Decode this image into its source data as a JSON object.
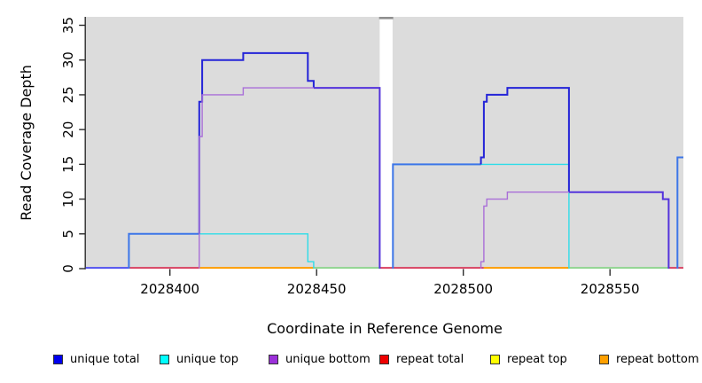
{
  "figure_title": "",
  "axes": {
    "x_title": "Coordinate in Reference Genome",
    "y_title": "Read Coverage Depth"
  },
  "legend": {
    "items": [
      {
        "label": "unique total",
        "color": "#0000EE"
      },
      {
        "label": "unique top",
        "color": "#00FFFF"
      },
      {
        "label": "unique bottom",
        "color": "#9B30D9"
      },
      {
        "label": "repeat total",
        "color": "#EE0000"
      },
      {
        "label": "repeat top",
        "color": "#FFFF00"
      },
      {
        "label": "repeat bottom",
        "color": "#FFA000"
      }
    ]
  },
  "chart_data": {
    "type": "line",
    "title": "",
    "xlabel": "Coordinate in Reference Genome",
    "ylabel": "Read Coverage Depth",
    "xlim": [
      2028371,
      2028575
    ],
    "ylim": [
      0,
      35
    ],
    "x_ticks": [
      2028400,
      2028450,
      2028500,
      2028550
    ],
    "y_ticks": [
      0,
      5,
      10,
      15,
      20,
      25,
      30,
      35
    ],
    "grid": false,
    "legend_position": "bottom",
    "panel_bg": "#DCDCDC",
    "gap_region": [
      2028471.5,
      2028475.9
    ],
    "series": [
      {
        "name": "unique total",
        "color": "#0000EE",
        "steps": [
          [
            2028371,
            0
          ],
          [
            2028386,
            5
          ],
          [
            2028410,
            24
          ],
          [
            2028411,
            30
          ],
          [
            2028425,
            31
          ],
          [
            2028447,
            27
          ],
          [
            2028449,
            26
          ],
          [
            2028472,
            0
          ],
          [
            2028476,
            15
          ],
          [
            2028506,
            16
          ],
          [
            2028507,
            24
          ],
          [
            2028508,
            25
          ],
          [
            2028515,
            26
          ],
          [
            2028536,
            11
          ],
          [
            2028568,
            10
          ],
          [
            2028570,
            0
          ],
          [
            2028573,
            16
          ],
          [
            2028575,
            16
          ]
        ]
      },
      {
        "name": "unique top",
        "color": "#00FFFF",
        "steps": [
          [
            2028371,
            0
          ],
          [
            2028386,
            5
          ],
          [
            2028447,
            1
          ],
          [
            2028449,
            0
          ],
          [
            2028476,
            15
          ],
          [
            2028536,
            0
          ],
          [
            2028573,
            16
          ],
          [
            2028575,
            16
          ]
        ]
      },
      {
        "name": "unique bottom",
        "color": "#9B30D9",
        "steps": [
          [
            2028371,
            0
          ],
          [
            2028410,
            19
          ],
          [
            2028411,
            25
          ],
          [
            2028425,
            26
          ],
          [
            2028472,
            0
          ],
          [
            2028506,
            1
          ],
          [
            2028507,
            9
          ],
          [
            2028508,
            10
          ],
          [
            2028515,
            11
          ],
          [
            2028570,
            0
          ],
          [
            2028575,
            0
          ]
        ]
      },
      {
        "name": "repeat total",
        "color": "#EE0000",
        "steps": [
          [
            2028371,
            0
          ],
          [
            2028575,
            0
          ]
        ]
      },
      {
        "name": "repeat top",
        "color": "#FFFF00",
        "steps": [
          [
            2028371,
            0
          ],
          [
            2028575,
            0
          ]
        ]
      },
      {
        "name": "repeat bottom",
        "color": "#FFA000",
        "steps": [
          [
            2028371,
            0
          ],
          [
            2028575,
            0
          ]
        ]
      }
    ],
    "palette": {
      "blue_line": "#2424D8",
      "royal_blend": "#3D76E8",
      "cyan_line": "#2FDDE8",
      "purple_line": "#A96FD8",
      "indigo_blend": "#5433DC",
      "red_line": "#D94060",
      "orange_line": "#FF9D00",
      "green_blend": "#8FD48F",
      "blue_zero": "#5050F0",
      "gap_top_bar": "#8F8F8F",
      "axis": "#2B2B2B"
    },
    "render": {
      "zero_segments": [
        {
          "color": "blue_zero",
          "x": [
            2028371.3,
            2028386
          ]
        },
        {
          "color": "red_line",
          "x": [
            2028386,
            2028410
          ]
        },
        {
          "color": "orange_line",
          "x": [
            2028410,
            2028449
          ]
        },
        {
          "color": "green_blend",
          "x": [
            2028449,
            2028471.5
          ]
        },
        {
          "color": "red_line",
          "x": [
            2028471.5,
            2028507
          ]
        },
        {
          "color": "orange_line",
          "x": [
            2028507,
            2028536
          ]
        },
        {
          "color": "green_blend",
          "x": [
            2028536,
            2028570
          ]
        },
        {
          "color": "red_line",
          "x": [
            2028570,
            2028575
          ]
        }
      ],
      "polylines": [
        {
          "color": "cyan_line",
          "width": 1.4,
          "points": [
            [
              2028386,
              0
            ],
            [
              2028386,
              5
            ],
            [
              2028447,
              5
            ],
            [
              2028447,
              1
            ],
            [
              2028449,
              1
            ],
            [
              2028449,
              0
            ]
          ]
        },
        {
          "color": "cyan_line",
          "width": 1.4,
          "points": [
            [
              2028476,
              0
            ],
            [
              2028476,
              15
            ],
            [
              2028536,
              15
            ],
            [
              2028536,
              0
            ]
          ]
        },
        {
          "color": "royal_blend",
          "width": 2,
          "points": [
            [
              2028386,
              0
            ],
            [
              2028386,
              5
            ],
            [
              2028410,
              5
            ]
          ]
        },
        {
          "color": "blue_line",
          "width": 2,
          "points": [
            [
              2028410,
              5
            ],
            [
              2028410,
              24
            ],
            [
              2028411,
              24
            ],
            [
              2028411,
              30
            ],
            [
              2028425,
              30
            ],
            [
              2028425,
              31
            ],
            [
              2028447,
              31
            ],
            [
              2028447,
              27
            ],
            [
              2028449,
              27
            ],
            [
              2028449,
              26
            ]
          ]
        },
        {
          "color": "indigo_blend",
          "width": 2,
          "points": [
            [
              2028449,
              26
            ],
            [
              2028471.5,
              26
            ],
            [
              2028471.5,
              0
            ]
          ]
        },
        {
          "color": "royal_blend",
          "width": 2,
          "points": [
            [
              2028476,
              0
            ],
            [
              2028476,
              15
            ],
            [
              2028506,
              15
            ]
          ]
        },
        {
          "color": "blue_line",
          "width": 2,
          "points": [
            [
              2028506,
              15
            ],
            [
              2028506,
              16
            ],
            [
              2028507,
              16
            ],
            [
              2028507,
              24
            ],
            [
              2028508,
              24
            ],
            [
              2028508,
              25
            ],
            [
              2028515,
              25
            ],
            [
              2028515,
              26
            ],
            [
              2028536,
              26
            ],
            [
              2028536,
              11
            ]
          ]
        },
        {
          "color": "indigo_blend",
          "width": 2,
          "points": [
            [
              2028536,
              11
            ],
            [
              2028568,
              11
            ],
            [
              2028568,
              10
            ],
            [
              2028570,
              10
            ],
            [
              2028570,
              0
            ]
          ]
        },
        {
          "color": "purple_line",
          "width": 1.4,
          "points": [
            [
              2028410,
              0
            ],
            [
              2028410,
              19
            ],
            [
              2028411,
              19
            ],
            [
              2028411,
              25
            ],
            [
              2028425,
              25
            ],
            [
              2028425,
              26
            ],
            [
              2028449,
              26
            ]
          ]
        },
        {
          "color": "purple_line",
          "width": 1.4,
          "points": [
            [
              2028506,
              0
            ],
            [
              2028506,
              1
            ],
            [
              2028507,
              1
            ],
            [
              2028507,
              9
            ],
            [
              2028508,
              9
            ],
            [
              2028508,
              10
            ],
            [
              2028515,
              10
            ],
            [
              2028515,
              11
            ],
            [
              2028536,
              11
            ]
          ]
        },
        {
          "color": "royal_blend",
          "width": 2,
          "points": [
            [
              2028573,
              0
            ],
            [
              2028573,
              16
            ],
            [
              2028575,
              16
            ]
          ]
        }
      ]
    }
  }
}
